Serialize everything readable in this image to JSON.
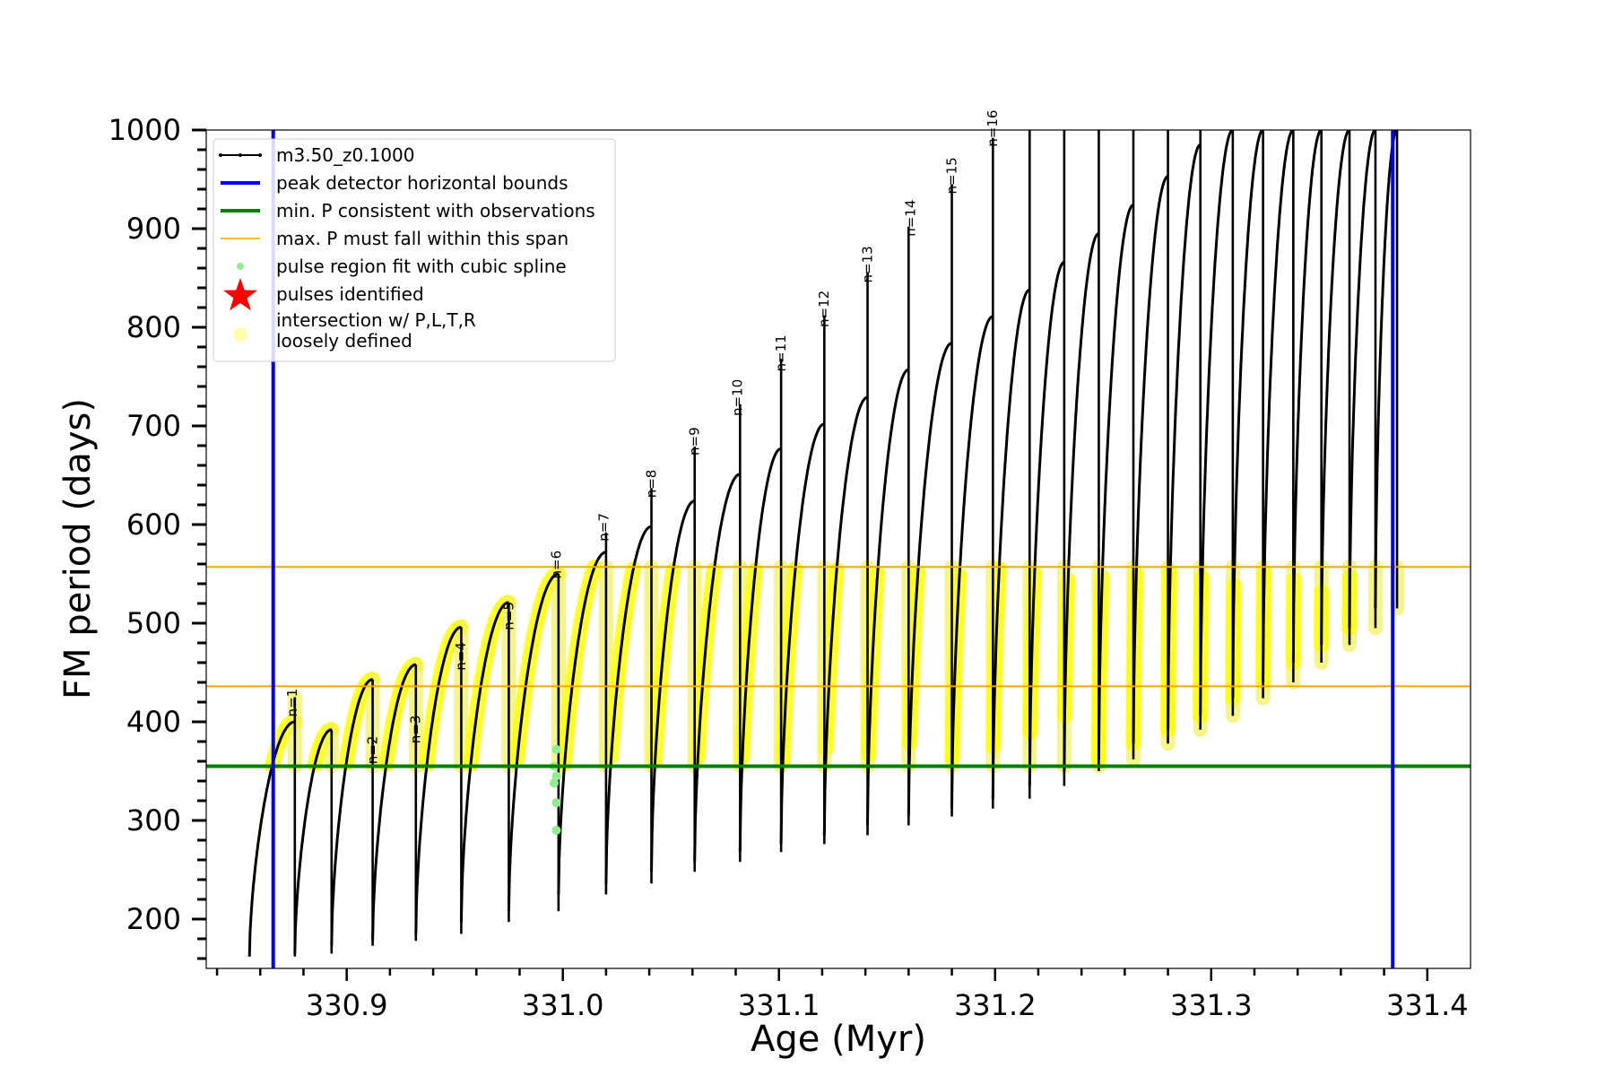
{
  "chart_data": {
    "type": "line",
    "xlabel": "Age (Myr)",
    "ylabel": "FM period (days)",
    "xlim": [
      330.835,
      331.42
    ],
    "ylim": [
      150,
      1000
    ],
    "x_ticks": [
      330.9,
      331.0,
      331.1,
      331.2,
      331.3,
      331.4
    ],
    "x_tick_labels": [
      "330.9",
      "331.0",
      "331.1",
      "331.2",
      "331.3",
      "331.4"
    ],
    "y_ticks": [
      200,
      300,
      400,
      500,
      600,
      700,
      800,
      900,
      1000
    ],
    "y_tick_labels": [
      "200",
      "300",
      "400",
      "500",
      "600",
      "700",
      "800",
      "900",
      "1000"
    ],
    "grid": false,
    "legend_position": "top-left",
    "legend": [
      {
        "label": "m3.50_z0.1000",
        "style": "line-dots",
        "color": "#000000"
      },
      {
        "label": "peak detector horizontal bounds",
        "style": "line",
        "color": "#0000ff"
      },
      {
        "label": "min. P consistent with observations",
        "style": "line",
        "color": "#008000"
      },
      {
        "label": "max. P must fall within this span",
        "style": "thin-line",
        "color": "#ffa500"
      },
      {
        "label": "pulse region fit with cubic spline",
        "style": "dot",
        "color": "#90ee90"
      },
      {
        "label": "pulses identified",
        "style": "star",
        "color": "#ff0000"
      },
      {
        "label": "intersection w/ P,L,T,R\nloosely defined",
        "style": "circle",
        "color": "#ffffb0"
      }
    ],
    "reference_lines": {
      "vertical_blue_x": [
        330.866,
        331.384
      ],
      "horizontal_green_y": 355,
      "horizontal_orange_y": [
        436,
        557
      ]
    },
    "pulses": [
      {
        "start": 330.855,
        "peak": 330.876,
        "spike": 330.876,
        "min": 162,
        "max": 400,
        "spike_top": 425,
        "label": ""
      },
      {
        "start": 330.876,
        "peak": 330.893,
        "spike": 330.893,
        "min": 165,
        "max": 392,
        "spike_top": 392,
        "label": "n=1",
        "label_x": 330.877,
        "label_y": 405
      },
      {
        "start": 330.893,
        "peak": 330.912,
        "spike": 330.912,
        "min": 173,
        "max": 443,
        "spike_top": 443,
        "label": ""
      },
      {
        "start": 330.912,
        "peak": 330.932,
        "spike": 330.932,
        "min": 178,
        "max": 458,
        "spike_top": 458,
        "label": "n=2",
        "label_x": 330.914,
        "label_y": 357
      },
      {
        "start": 330.932,
        "peak": 330.953,
        "spike": 330.953,
        "min": 185,
        "max": 496,
        "spike_top": 496,
        "label": "n=3",
        "label_x": 330.934,
        "label_y": 378
      },
      {
        "start": 330.953,
        "peak": 330.975,
        "spike": 330.975,
        "min": 197,
        "max": 521,
        "spike_top": 521,
        "label": "n=4",
        "label_x": 330.955,
        "label_y": 452
      },
      {
        "start": 330.975,
        "peak": 330.998,
        "spike": 330.998,
        "min": 208,
        "max": 550,
        "spike_top": 550,
        "label": "n=5",
        "label_x": 330.977,
        "label_y": 493
      },
      {
        "start": 330.998,
        "peak": 331.02,
        "spike": 331.02,
        "min": 225,
        "max": 572,
        "spike_top": 592,
        "label": "n=6",
        "label_x": 330.999,
        "label_y": 545
      },
      {
        "start": 331.02,
        "peak": 331.041,
        "spike": 331.041,
        "min": 236,
        "max": 598,
        "spike_top": 637,
        "label": "n=7",
        "label_x": 331.021,
        "label_y": 583
      },
      {
        "start": 331.041,
        "peak": 331.061,
        "spike": 331.061,
        "min": 248,
        "max": 624,
        "spike_top": 679,
        "label": "n=8",
        "label_x": 331.043,
        "label_y": 627
      },
      {
        "start": 331.061,
        "peak": 331.082,
        "spike": 331.082,
        "min": 258,
        "max": 651,
        "spike_top": 722,
        "label": "n=9",
        "label_x": 331.063,
        "label_y": 670
      },
      {
        "start": 331.082,
        "peak": 331.101,
        "spike": 331.101,
        "min": 268,
        "max": 677,
        "spike_top": 768,
        "label": "n=10",
        "label_x": 331.083,
        "label_y": 710
      },
      {
        "start": 331.101,
        "peak": 331.121,
        "spike": 331.121,
        "min": 276,
        "max": 702,
        "spike_top": 812,
        "label": "n=11",
        "label_x": 331.103,
        "label_y": 755
      },
      {
        "start": 331.121,
        "peak": 331.141,
        "spike": 331.141,
        "min": 285,
        "max": 729,
        "spike_top": 856,
        "label": "n=12",
        "label_x": 331.123,
        "label_y": 800
      },
      {
        "start": 331.141,
        "peak": 331.16,
        "spike": 331.16,
        "min": 295,
        "max": 757,
        "spike_top": 902,
        "label": "n=13",
        "label_x": 331.143,
        "label_y": 845
      },
      {
        "start": 331.16,
        "peak": 331.18,
        "spike": 331.18,
        "min": 304,
        "max": 784,
        "spike_top": 945,
        "label": "n=14",
        "label_x": 331.163,
        "label_y": 892
      },
      {
        "start": 331.18,
        "peak": 331.199,
        "spike": 331.199,
        "min": 312,
        "max": 811,
        "spike_top": 992,
        "label": "n=15",
        "label_x": 331.182,
        "label_y": 935
      },
      {
        "start": 331.199,
        "peak": 331.216,
        "spike": 331.216,
        "min": 322,
        "max": 838,
        "spike_top": 1000,
        "label": "n=16",
        "label_x": 331.201,
        "label_y": 983
      },
      {
        "start": 331.216,
        "peak": 331.232,
        "spike": 331.232,
        "min": 335,
        "max": 866,
        "spike_top": 1000,
        "label": ""
      },
      {
        "start": 331.232,
        "peak": 331.248,
        "spike": 331.248,
        "min": 350,
        "max": 895,
        "spike_top": 1000,
        "label": ""
      },
      {
        "start": 331.248,
        "peak": 331.264,
        "spike": 331.264,
        "min": 362,
        "max": 924,
        "spike_top": 1000,
        "label": ""
      },
      {
        "start": 331.264,
        "peak": 331.28,
        "spike": 331.28,
        "min": 378,
        "max": 953,
        "spike_top": 1000,
        "label": ""
      },
      {
        "start": 331.28,
        "peak": 331.295,
        "spike": 331.295,
        "min": 392,
        "max": 985,
        "spike_top": 1000,
        "label": ""
      },
      {
        "start": 331.295,
        "peak": 331.31,
        "spike": 331.31,
        "min": 406,
        "max": 1000,
        "spike_top": 1000,
        "label": ""
      },
      {
        "start": 331.31,
        "peak": 331.324,
        "spike": 331.324,
        "min": 424,
        "max": 1000,
        "spike_top": 1000,
        "label": ""
      },
      {
        "start": 331.324,
        "peak": 331.338,
        "spike": 331.338,
        "min": 440,
        "max": 1000,
        "spike_top": 1000,
        "label": ""
      },
      {
        "start": 331.338,
        "peak": 331.351,
        "spike": 331.351,
        "min": 460,
        "max": 1000,
        "spike_top": 1000,
        "label": ""
      },
      {
        "start": 331.351,
        "peak": 331.364,
        "spike": 331.364,
        "min": 478,
        "max": 1000,
        "spike_top": 1000,
        "label": ""
      },
      {
        "start": 331.364,
        "peak": 331.376,
        "spike": 331.376,
        "min": 495,
        "max": 1000,
        "spike_top": 1000,
        "label": ""
      },
      {
        "start": 331.376,
        "peak": 331.386,
        "spike": 331.386,
        "min": 515,
        "max": 1000,
        "spike_top": 1000,
        "label": ""
      }
    ],
    "highlight_band": [
      355,
      557
    ],
    "spline_points": [
      [
        330.997,
        290
      ],
      [
        330.997,
        318
      ],
      [
        330.996,
        338
      ],
      [
        330.997,
        345
      ],
      [
        330.996,
        355
      ],
      [
        330.997,
        372
      ]
    ]
  }
}
